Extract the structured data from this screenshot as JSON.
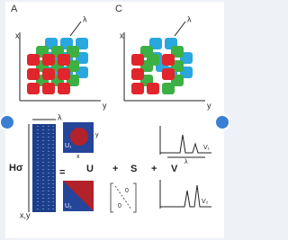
{
  "panels": {
    "a": {
      "label": "A",
      "x_axis": "x",
      "y_axis": "y",
      "lambda": "λ"
    },
    "c": {
      "label": "C",
      "x_axis": "x",
      "y_axis": "y",
      "lambda": "λ"
    }
  },
  "equation": {
    "h": "Hσ",
    "h_lambda": "λ",
    "h_xy": "x,y",
    "equals": "=",
    "u": "U",
    "plus_1": "+",
    "s": "S",
    "plus_2": "+",
    "v": "V",
    "u_1": "U₁",
    "u_2": "U₂",
    "u_1_y": "y",
    "u_1_x": "x",
    "zero_1": "0",
    "zero_2": "0",
    "v_1": "V₁",
    "v_2": "V₂",
    "v_lambda": "λ"
  }
}
